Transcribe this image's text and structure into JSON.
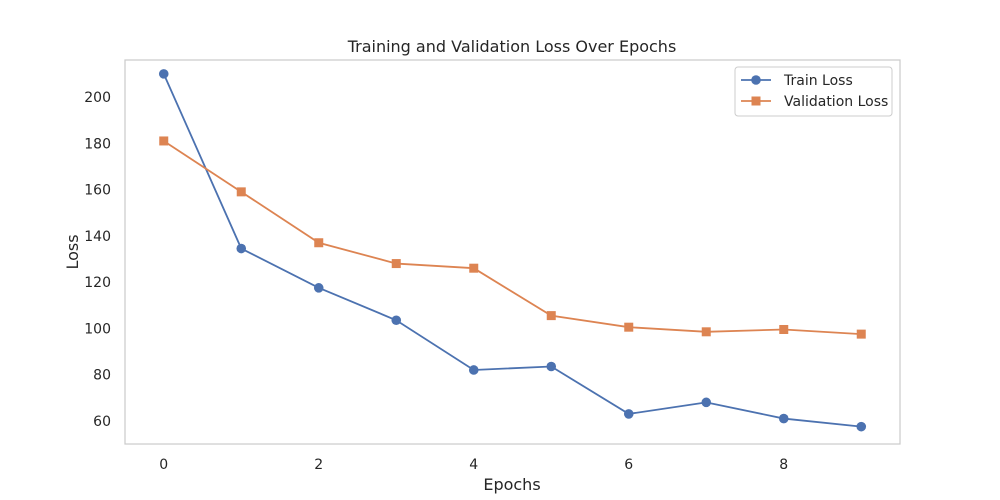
{
  "chart_data": {
    "type": "line",
    "title": "Training and Validation Loss Over Epochs",
    "xlabel": "Epochs",
    "ylabel": "Loss",
    "x": [
      0,
      1,
      2,
      3,
      4,
      5,
      6,
      7,
      8,
      9
    ],
    "xlim": [
      -0.5,
      9.5
    ],
    "ylim": [
      50,
      216
    ],
    "xticks": [
      0,
      2,
      4,
      6,
      8
    ],
    "yticks": [
      60,
      80,
      100,
      120,
      140,
      160,
      180,
      200
    ],
    "grid": false,
    "legend_position": "top-right",
    "series": [
      {
        "name": "Train Loss",
        "marker": "circle",
        "color": "#4c72b0",
        "values": [
          210,
          134.5,
          117.5,
          103.5,
          82,
          83.5,
          63,
          68,
          61,
          57.5
        ]
      },
      {
        "name": "Validation Loss",
        "marker": "square",
        "color": "#dd8452",
        "values": [
          181,
          159,
          137,
          128,
          126,
          105.5,
          100.5,
          98.5,
          99.5,
          97.5
        ]
      }
    ]
  }
}
